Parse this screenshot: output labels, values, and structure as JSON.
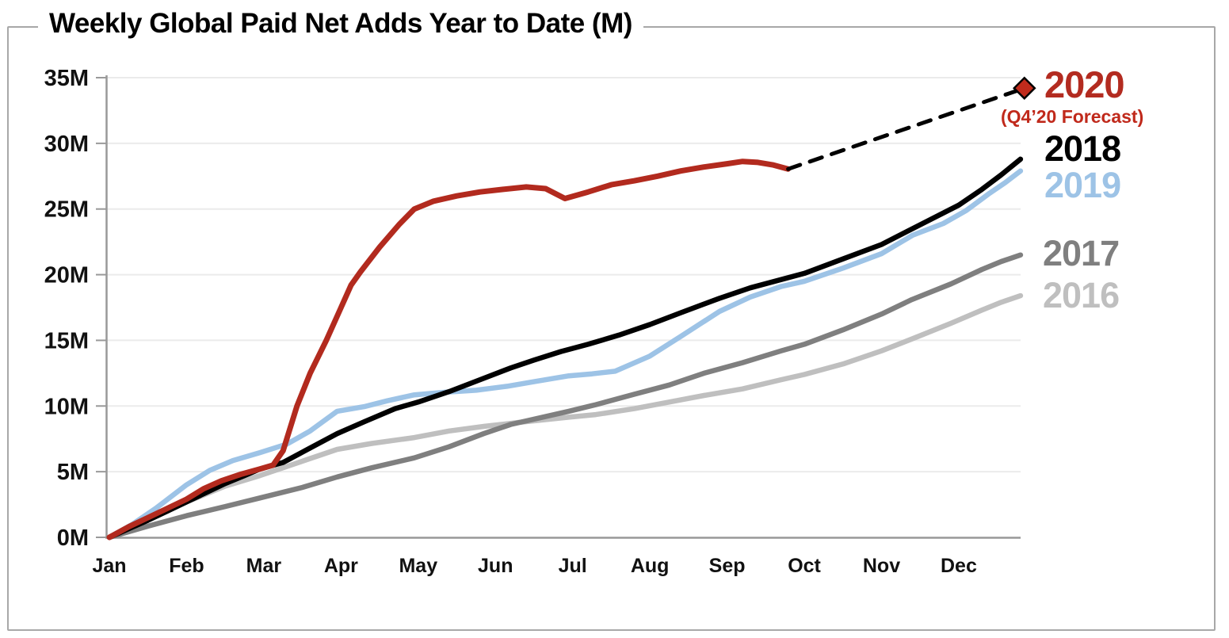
{
  "title": "Weekly Global Paid Net Adds Year to Date (M)",
  "chart_data": {
    "type": "line",
    "title": "Weekly Global Paid Net Adds Year to Date (M)",
    "x_unit": "month index (Jan 1 = 0, Dec 31 = 12)",
    "y_unit": "millions of paid net adds (YTD)",
    "ylim": [
      0,
      35
    ],
    "grid": "horizontal gridlines every 5M, very light gray",
    "legend_position": "right, stacked text labels colored per series",
    "colors": {
      "red_2020": "#B22A1E",
      "forecast_text": "#C0291B",
      "black_2018": "#000000",
      "blue_2019": "#9DC3E6",
      "gray_2017": "#7F7F7F",
      "lightgray_2016": "#BFBFBF",
      "diamond_fill": "#C02B1C",
      "gridline": "#EBEBEB",
      "axis": "#999999"
    },
    "y_axis": {
      "tick_labels": [
        "0M",
        "5M",
        "10M",
        "15M",
        "20M",
        "25M",
        "30M",
        "35M"
      ],
      "tick_values": [
        0,
        5,
        10,
        15,
        20,
        25,
        30,
        35
      ]
    },
    "x_axis": {
      "tick_labels": [
        "Jan",
        "Feb",
        "Mar",
        "Apr",
        "May",
        "Jun",
        "Jul",
        "Aug",
        "Sep",
        "Oct",
        "Nov",
        "Dec"
      ]
    },
    "series": [
      {
        "name": "2016",
        "color": "#BFBFBF",
        "style": "solid",
        "width": 6.5,
        "points": [
          [
            0,
            0
          ],
          [
            0.5,
            1.6
          ],
          [
            1,
            2.7
          ],
          [
            1.5,
            3.9
          ],
          [
            1.95,
            4.7
          ],
          [
            2.5,
            5.8
          ],
          [
            2.95,
            6.7
          ],
          [
            3.4,
            7.15
          ],
          [
            3.95,
            7.6
          ],
          [
            4.4,
            8.1
          ],
          [
            4.85,
            8.45
          ],
          [
            5.3,
            8.75
          ],
          [
            5.95,
            9.15
          ],
          [
            6.3,
            9.35
          ],
          [
            6.8,
            9.8
          ],
          [
            7.25,
            10.3
          ],
          [
            7.7,
            10.8
          ],
          [
            8.2,
            11.3
          ],
          [
            8.7,
            12.0
          ],
          [
            9,
            12.4
          ],
          [
            9.5,
            13.2
          ],
          [
            10,
            14.2
          ],
          [
            10.39,
            15.1
          ],
          [
            10.9,
            16.3
          ],
          [
            11.3,
            17.3
          ],
          [
            11.55,
            17.9
          ],
          [
            11.8,
            18.4
          ]
        ]
      },
      {
        "name": "2017",
        "color": "#7F7F7F",
        "style": "solid",
        "width": 6.5,
        "points": [
          [
            0,
            0
          ],
          [
            0.5,
            0.85
          ],
          [
            1,
            1.65
          ],
          [
            1.5,
            2.35
          ],
          [
            1.95,
            3.0
          ],
          [
            2.5,
            3.8
          ],
          [
            2.95,
            4.6
          ],
          [
            3.4,
            5.3
          ],
          [
            3.95,
            6.05
          ],
          [
            4.4,
            6.9
          ],
          [
            4.85,
            7.9
          ],
          [
            5.2,
            8.6
          ],
          [
            5.95,
            9.6
          ],
          [
            6.3,
            10.1
          ],
          [
            6.8,
            10.9
          ],
          [
            7.25,
            11.6
          ],
          [
            7.7,
            12.5
          ],
          [
            8.2,
            13.3
          ],
          [
            8.7,
            14.2
          ],
          [
            9,
            14.7
          ],
          [
            9.5,
            15.8
          ],
          [
            10,
            17.0
          ],
          [
            10.39,
            18.1
          ],
          [
            10.9,
            19.3
          ],
          [
            11.3,
            20.4
          ],
          [
            11.55,
            21.0
          ],
          [
            11.8,
            21.5
          ]
        ]
      },
      {
        "name": "2019",
        "color": "#9DC3E6",
        "style": "solid",
        "width": 6.5,
        "points": [
          [
            0,
            0
          ],
          [
            0.3,
            1.0
          ],
          [
            0.6,
            2.2
          ],
          [
            1,
            4.0
          ],
          [
            1.3,
            5.1
          ],
          [
            1.6,
            5.85
          ],
          [
            1.95,
            6.45
          ],
          [
            2.3,
            7.1
          ],
          [
            2.6,
            8.1
          ],
          [
            2.95,
            9.6
          ],
          [
            3.3,
            9.95
          ],
          [
            3.6,
            10.4
          ],
          [
            3.95,
            10.85
          ],
          [
            4.35,
            11.05
          ],
          [
            4.75,
            11.2
          ],
          [
            5.15,
            11.5
          ],
          [
            5.5,
            11.85
          ],
          [
            5.95,
            12.3
          ],
          [
            6.25,
            12.45
          ],
          [
            6.55,
            12.65
          ],
          [
            7,
            13.8
          ],
          [
            7.4,
            15.3
          ],
          [
            7.9,
            17.2
          ],
          [
            8.3,
            18.3
          ],
          [
            8.7,
            19.1
          ],
          [
            9,
            19.5
          ],
          [
            9.5,
            20.5
          ],
          [
            10,
            21.6
          ],
          [
            10.4,
            23.0
          ],
          [
            10.8,
            23.9
          ],
          [
            11.1,
            24.9
          ],
          [
            11.4,
            26.2
          ],
          [
            11.6,
            27.0
          ],
          [
            11.8,
            27.9
          ]
        ]
      },
      {
        "name": "2018",
        "color": "#000000",
        "style": "solid",
        "width": 6.5,
        "points": [
          [
            0,
            0
          ],
          [
            0.25,
            0.65
          ],
          [
            0.5,
            1.3
          ],
          [
            0.75,
            2.0
          ],
          [
            1,
            2.7
          ],
          [
            1.25,
            3.4
          ],
          [
            1.5,
            4.1
          ],
          [
            1.75,
            4.7
          ],
          [
            1.95,
            5.2
          ],
          [
            2.25,
            5.7
          ],
          [
            2.6,
            6.8
          ],
          [
            2.95,
            7.9
          ],
          [
            3.3,
            8.8
          ],
          [
            3.7,
            9.8
          ],
          [
            4,
            10.3
          ],
          [
            4.4,
            11.1
          ],
          [
            4.8,
            12.0
          ],
          [
            5.2,
            12.9
          ],
          [
            5.5,
            13.5
          ],
          [
            5.85,
            14.15
          ],
          [
            6.2,
            14.7
          ],
          [
            6.6,
            15.4
          ],
          [
            7,
            16.2
          ],
          [
            7.4,
            17.1
          ],
          [
            7.9,
            18.2
          ],
          [
            8.3,
            19.0
          ],
          [
            9,
            20.1
          ],
          [
            9.5,
            21.2
          ],
          [
            10,
            22.3
          ],
          [
            10.5,
            23.8
          ],
          [
            11,
            25.3
          ],
          [
            11.3,
            26.5
          ],
          [
            11.55,
            27.6
          ],
          [
            11.8,
            28.8
          ]
        ]
      },
      {
        "name": "2020",
        "color": "#B22A1E",
        "style": "solid",
        "width": 7,
        "points": [
          [
            0,
            0
          ],
          [
            0.25,
            0.8
          ],
          [
            0.5,
            1.5
          ],
          [
            0.75,
            2.2
          ],
          [
            1,
            2.9
          ],
          [
            1.22,
            3.7
          ],
          [
            1.45,
            4.3
          ],
          [
            1.7,
            4.8
          ],
          [
            1.95,
            5.2
          ],
          [
            2.12,
            5.5
          ],
          [
            2.25,
            6.6
          ],
          [
            2.43,
            10.0
          ],
          [
            2.6,
            12.5
          ],
          [
            2.81,
            15.0
          ],
          [
            3.0,
            17.5
          ],
          [
            3.13,
            19.2
          ],
          [
            3.25,
            20.2
          ],
          [
            3.5,
            22.1
          ],
          [
            3.75,
            23.8
          ],
          [
            3.95,
            25.0
          ],
          [
            4.2,
            25.6
          ],
          [
            4.5,
            26.0
          ],
          [
            4.8,
            26.3
          ],
          [
            5.1,
            26.5
          ],
          [
            5.4,
            26.68
          ],
          [
            5.65,
            26.55
          ],
          [
            5.9,
            25.8
          ],
          [
            6.2,
            26.3
          ],
          [
            6.5,
            26.85
          ],
          [
            6.8,
            27.15
          ],
          [
            7.1,
            27.5
          ],
          [
            7.4,
            27.9
          ],
          [
            7.7,
            28.2
          ],
          [
            8,
            28.45
          ],
          [
            8.2,
            28.62
          ],
          [
            8.4,
            28.55
          ],
          [
            8.6,
            28.35
          ],
          [
            8.79,
            28.05
          ]
        ]
      },
      {
        "name": "2020 Q4 forecast",
        "color": "#000000",
        "style": "dashed",
        "width": 5,
        "end_marker": "diamond",
        "marker_color": "#C02B1C",
        "points": [
          [
            8.79,
            28.05
          ],
          [
            11.85,
            34.2
          ]
        ]
      }
    ],
    "legend": [
      {
        "label": "2020",
        "color": "#B32B20"
      },
      {
        "label": "(Q4’20 Forecast)",
        "color": "#C0291B"
      },
      {
        "label": "2018",
        "color": "#000000"
      },
      {
        "label": "2019",
        "color": "#9DC3E6"
      },
      {
        "label": "2017",
        "color": "#7F7F7F"
      },
      {
        "label": "2016",
        "color": "#BFBFBF"
      }
    ]
  }
}
